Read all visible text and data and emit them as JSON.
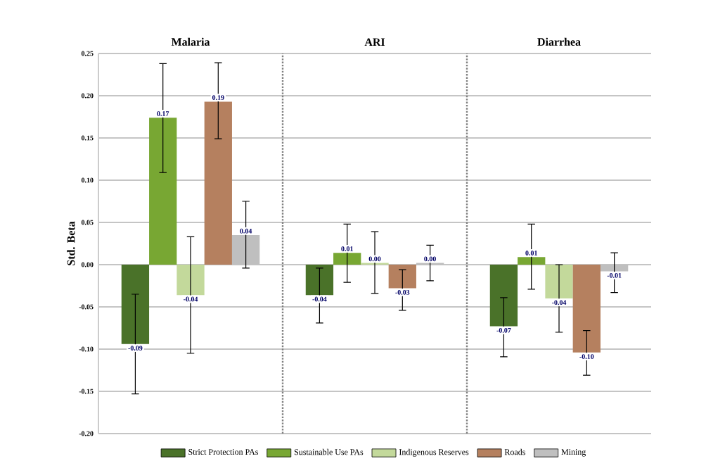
{
  "chart_data": {
    "type": "bar",
    "ylabel": "Std. Beta",
    "categories": [
      "Malaria",
      "ARI",
      "Diarrhea"
    ],
    "series": [
      {
        "name": "Strict Protection PAs",
        "color": "#4a7229",
        "values": [
          -0.094,
          -0.036,
          -0.073
        ],
        "errors": [
          [
            -0.153,
            -0.035
          ],
          [
            -0.069,
            -0.004
          ],
          [
            -0.109,
            -0.039
          ]
        ],
        "value_labels": [
          "-0.09",
          "-0.04",
          "-0.07"
        ]
      },
      {
        "name": "Sustainable Use PAs",
        "color": "#78a733",
        "values": [
          0.174,
          0.014,
          0.009
        ],
        "errors": [
          [
            0.109,
            0.238
          ],
          [
            -0.021,
            0.048
          ],
          [
            -0.029,
            0.048
          ]
        ],
        "value_labels": [
          "0.17",
          "0.01",
          "0.01"
        ]
      },
      {
        "name": "Indigenous Reserves",
        "color": "#c3d99b",
        "values": [
          -0.036,
          0.002,
          -0.04
        ],
        "errors": [
          [
            -0.105,
            0.033
          ],
          [
            -0.034,
            0.039
          ],
          [
            -0.08,
            0.0
          ]
        ],
        "value_labels": [
          "-0.04",
          "0.00",
          "-0.04"
        ]
      },
      {
        "name": "Roads",
        "color": "#b5805f",
        "values": [
          0.193,
          -0.028,
          -0.104
        ],
        "errors": [
          [
            0.149,
            0.239
          ],
          [
            -0.054,
            -0.006
          ],
          [
            -0.131,
            -0.078
          ]
        ],
        "value_labels": [
          "0.19",
          "-0.03",
          "-0.10"
        ]
      },
      {
        "name": "Mining",
        "color": "#bfbfbf",
        "values": [
          0.035,
          0.002,
          -0.008
        ],
        "errors": [
          [
            -0.004,
            0.075
          ],
          [
            -0.019,
            0.023
          ],
          [
            -0.033,
            0.014
          ]
        ],
        "value_labels": [
          "0.04",
          "0.00",
          "-0.01"
        ]
      }
    ],
    "ylim": [
      -0.2,
      0.25
    ],
    "yticks": [
      {
        "value": -0.2,
        "label": "-0.20"
      },
      {
        "value": -0.15,
        "label": "-0.15"
      },
      {
        "value": -0.1,
        "label": "-0.10"
      },
      {
        "value": -0.05,
        "label": "-0.05"
      },
      {
        "value": 0,
        "label": "0.00"
      },
      {
        "value": 0.05,
        "label": "0.05"
      },
      {
        "value": 0.1,
        "label": "0.10"
      },
      {
        "value": 0.15,
        "label": "0.15"
      },
      {
        "value": 0.2,
        "label": "0.20"
      },
      {
        "value": 0.25,
        "label": "0.25"
      }
    ],
    "grid": "y",
    "legend": "bottom"
  }
}
